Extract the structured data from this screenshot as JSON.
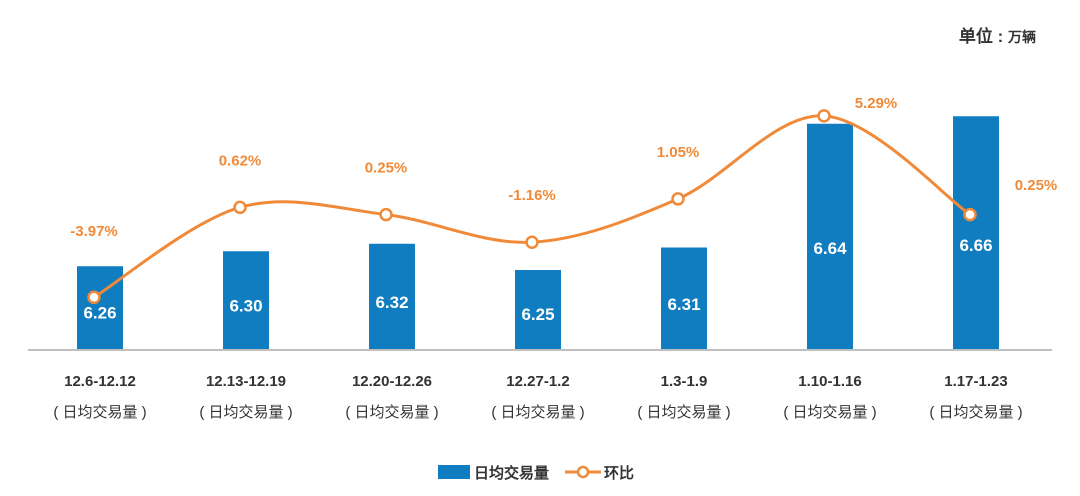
{
  "unit_label": "单位 :",
  "unit_value": "万辆",
  "chart_data": {
    "type": "bar",
    "categories": [
      "12.6-12.12",
      "12.13-12.19",
      "12.20-12.26",
      "12.27-1.2",
      "1.3-1.9",
      "1.10-1.16",
      "1.17-1.23"
    ],
    "sub_label": "( 日均交易量 )",
    "series": [
      {
        "name": "日均交易量",
        "type": "bar",
        "values": [
          6.26,
          6.3,
          6.32,
          6.25,
          6.31,
          6.64,
          6.66
        ],
        "labels": [
          "6.26",
          "6.30",
          "6.32",
          "6.25",
          "6.31",
          "6.64",
          "6.66"
        ]
      },
      {
        "name": "环比",
        "type": "line",
        "values": [
          -3.97,
          0.62,
          0.25,
          -1.16,
          1.05,
          5.29,
          0.25
        ],
        "labels": [
          "-3.97%",
          "0.62%",
          "0.25%",
          "-1.16%",
          "1.05%",
          "5.29%",
          "0.25%"
        ]
      }
    ],
    "legend_position": "bottom-center",
    "grid": false,
    "colors": {
      "bar": "#0F7DBF",
      "line": "#F08A38",
      "axis": "#BFBFBF"
    }
  }
}
